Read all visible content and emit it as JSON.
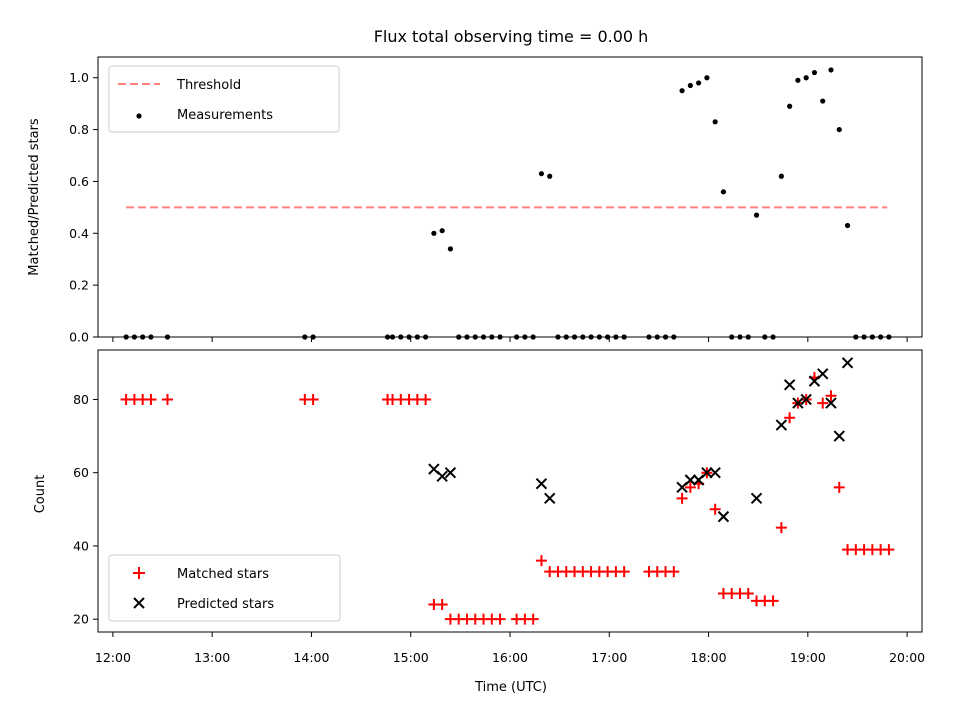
{
  "chart_data": [
    {
      "type": "scatter",
      "title": "Flux total observing time = 0.00 h",
      "ylabel": "Matched/Predicted stars",
      "xlabel": "",
      "xlim": [
        "11:51",
        "20:09"
      ],
      "ylim": [
        0.0,
        1.08
      ],
      "y_ticks": [
        0.0,
        0.2,
        0.4,
        0.6,
        0.8,
        1.0
      ],
      "y_tick_labels": [
        "0.0",
        "0.2",
        "0.4",
        "0.6",
        "0.8",
        "1.0"
      ],
      "legend": {
        "placement": "top-left",
        "entries": [
          "Threshold",
          "Measurements"
        ]
      },
      "series": [
        {
          "name": "Threshold",
          "style": "dashed-line",
          "color": "#ff7f7f",
          "x": [
            "12:08",
            "19:48"
          ],
          "y": [
            0.5,
            0.5
          ]
        },
        {
          "name": "Measurements",
          "style": "dot",
          "color": "#000000",
          "x": [
            "12:08",
            "12:13",
            "12:18",
            "12:23",
            "12:33",
            "13:56",
            "14:01",
            "14:46",
            "14:49",
            "14:54",
            "14:59",
            "15:04",
            "15:09",
            "15:14",
            "15:19",
            "15:24",
            "15:29",
            "15:34",
            "15:39",
            "15:44",
            "15:49",
            "15:54",
            "16:04",
            "16:09",
            "16:14",
            "16:19",
            "16:24",
            "16:29",
            "16:34",
            "16:39",
            "16:44",
            "16:49",
            "16:54",
            "16:59",
            "17:04",
            "17:09",
            "17:24",
            "17:29",
            "17:34",
            "17:39",
            "17:44",
            "17:49",
            "17:54",
            "17:59",
            "18:04",
            "18:09",
            "18:14",
            "18:19",
            "18:24",
            "18:29",
            "18:34",
            "18:39",
            "18:44",
            "18:49",
            "18:54",
            "18:59",
            "19:04",
            "19:09",
            "19:14",
            "19:19",
            "19:24",
            "19:29",
            "19:34",
            "19:39",
            "19:44",
            "19:49"
          ],
          "y": [
            0,
            0,
            0,
            0,
            0,
            0,
            0,
            0,
            0,
            0,
            0,
            0,
            0,
            0.4,
            0.41,
            0.34,
            0,
            0,
            0,
            0,
            0,
            0,
            0,
            0,
            0,
            0.63,
            0.62,
            0,
            0,
            0,
            0,
            0,
            0,
            0,
            0,
            0,
            0,
            0,
            0,
            0,
            0.95,
            0.97,
            0.98,
            1.0,
            0.83,
            0.56,
            0,
            0,
            0,
            0.47,
            0,
            0,
            0.62,
            0.89,
            0.99,
            1.0,
            1.02,
            0.91,
            1.03,
            0.8,
            0.43,
            0,
            0,
            0,
            0,
            0
          ]
        }
      ]
    },
    {
      "type": "scatter",
      "title": "",
      "ylabel": "Count",
      "xlabel": "Time (UTC)",
      "xlim": [
        "11:51",
        "20:09"
      ],
      "ylim": [
        16.5,
        93.5
      ],
      "y_ticks": [
        20,
        40,
        60,
        80
      ],
      "y_tick_labels": [
        "20",
        "40",
        "60",
        "80"
      ],
      "x_ticks": [
        "12:00",
        "13:00",
        "14:00",
        "15:00",
        "16:00",
        "17:00",
        "18:00",
        "19:00",
        "20:00"
      ],
      "legend": {
        "placement": "bottom-left",
        "entries": [
          "Matched stars",
          "Predicted stars"
        ]
      },
      "series": [
        {
          "name": "Matched stars",
          "marker": "plus",
          "color": "#ff0000",
          "x": [
            "12:08",
            "12:13",
            "12:18",
            "12:23",
            "12:33",
            "13:56",
            "14:01",
            "14:46",
            "14:49",
            "14:54",
            "14:59",
            "15:04",
            "15:09",
            "15:14",
            "15:19",
            "15:24",
            "15:29",
            "15:34",
            "15:39",
            "15:44",
            "15:49",
            "15:54",
            "16:04",
            "16:09",
            "16:14",
            "16:19",
            "16:24",
            "16:29",
            "16:34",
            "16:39",
            "16:44",
            "16:49",
            "16:54",
            "16:59",
            "17:04",
            "17:09",
            "17:24",
            "17:29",
            "17:34",
            "17:39",
            "17:44",
            "17:49",
            "17:54",
            "17:59",
            "18:04",
            "18:09",
            "18:14",
            "18:19",
            "18:24",
            "18:29",
            "18:34",
            "18:39",
            "18:44",
            "18:49",
            "18:54",
            "18:59",
            "19:04",
            "19:09",
            "19:14",
            "19:19",
            "19:24",
            "19:29",
            "19:34",
            "19:39",
            "19:44",
            "19:49"
          ],
          "y": [
            80,
            80,
            80,
            80,
            80,
            80,
            80,
            80,
            80,
            80,
            80,
            80,
            80,
            24,
            24,
            20,
            20,
            20,
            20,
            20,
            20,
            20,
            20,
            20,
            20,
            36,
            33,
            33,
            33,
            33,
            33,
            33,
            33,
            33,
            33,
            33,
            33,
            33,
            33,
            33,
            53,
            56,
            57,
            60,
            50,
            27,
            27,
            27,
            27,
            25,
            25,
            25,
            45,
            75,
            79,
            80,
            86,
            79,
            81,
            56,
            39,
            39,
            39,
            39,
            39,
            39
          ]
        },
        {
          "name": "Predicted stars",
          "marker": "x",
          "color": "#000000",
          "x": [
            "15:14",
            "15:19",
            "15:24",
            "16:19",
            "16:24",
            "17:44",
            "17:49",
            "17:54",
            "17:59",
            "18:04",
            "18:09",
            "18:29",
            "18:44",
            "18:49",
            "18:54",
            "18:59",
            "19:04",
            "19:09",
            "19:14",
            "19:19",
            "19:24"
          ],
          "y": [
            61,
            59,
            60,
            57,
            53,
            56,
            58,
            58,
            60,
            60,
            48,
            53,
            73,
            84,
            79,
            80,
            85,
            87,
            79,
            70,
            90
          ]
        }
      ]
    }
  ]
}
